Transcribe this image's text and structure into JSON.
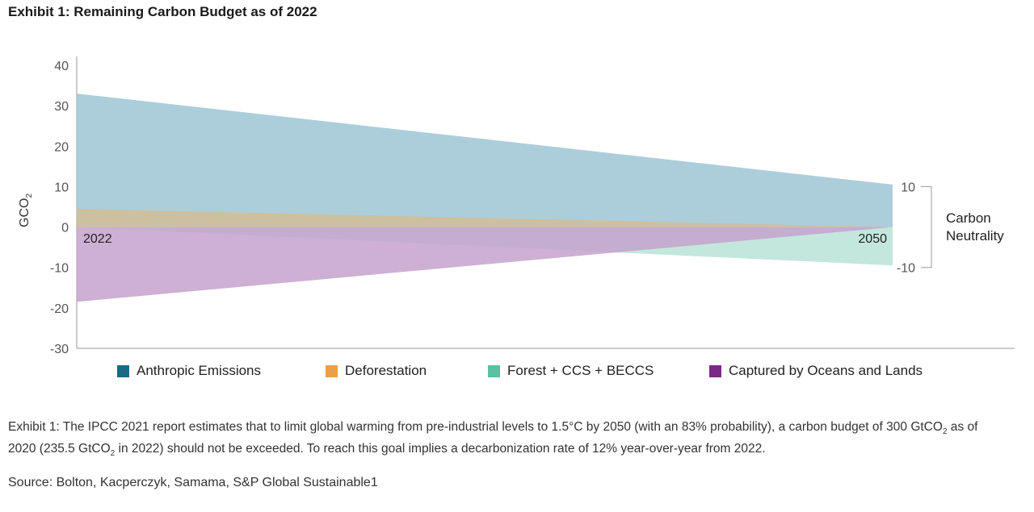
{
  "title": "Exhibit 1: Remaining Carbon Budget as of 2022",
  "caption_parts": {
    "p1": "Exhibit 1: The IPCC 2021 report estimates that to limit global warming from pre-industrial levels to 1.5°C by 2050 (with an 83% probability), a carbon budget of 300 GtCO",
    "sub1": "2",
    "p2": " as of 2020 (235.5 GtCO",
    "sub2": "2",
    "p3": " in 2022) should not be exceeded. To reach this goal implies a decarbonization rate of 12% year-over-year from 2022."
  },
  "source": "Source: Bolton, Kacperczyk, Samama, S&P Global Sustainable1",
  "chart_data": {
    "type": "area",
    "ylabel": "GCO",
    "ylabel_sub": "2",
    "ylim": [
      -30,
      40
    ],
    "yticks": [
      "40",
      "30",
      "20",
      "10",
      "0",
      "-10",
      "-20",
      "-30"
    ],
    "ytick_values": [
      40,
      30,
      20,
      10,
      0,
      -10,
      -20,
      -30
    ],
    "x": [
      2022,
      2050
    ],
    "x_labels": [
      "2022",
      "2050"
    ],
    "series": [
      {
        "name": "Anthropic Emissions",
        "values": [
          33,
          10.5
        ],
        "color": "#1a6a86",
        "fill": "#9ec5d3"
      },
      {
        "name": "Deforestation",
        "values": [
          4.5,
          0
        ],
        "color": "#e8a148",
        "fill": "#d2bd95"
      },
      {
        "name": "Forest + CCS + BECCS",
        "values": [
          0,
          -9.5
        ],
        "color": "#5cc0a3",
        "fill": "#b8e3d7"
      },
      {
        "name": "Captured by Oceans and Lands",
        "values": [
          -18.5,
          0
        ],
        "color": "#7a2a85",
        "fill": "#c6a2cc"
      }
    ],
    "right_axis": {
      "ticks": [
        "10",
        "-10"
      ],
      "tick_values": [
        10,
        -10
      ],
      "label": [
        "Carbon",
        "Neutrality"
      ]
    },
    "grid": false,
    "legend_position": "bottom"
  }
}
